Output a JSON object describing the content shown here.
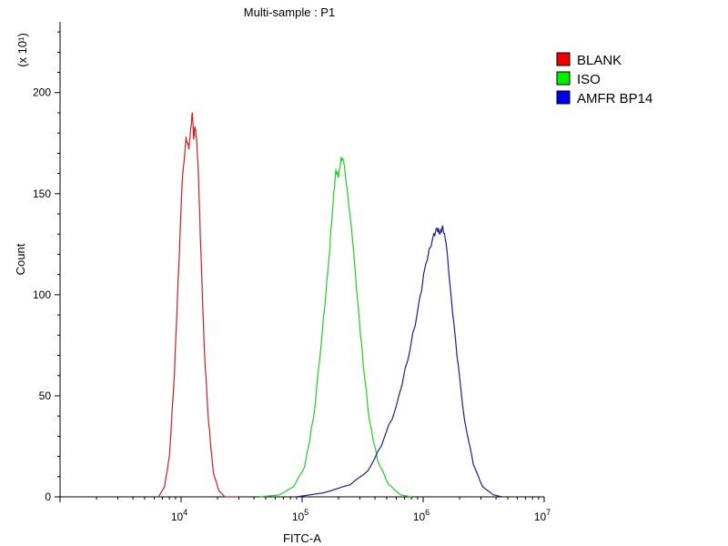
{
  "chart_data": {
    "type": "line",
    "title": "Multi-sample : P1",
    "xlabel": "FITC-A",
    "ylabel": "Count",
    "y_multiplier": "(x 10¹)",
    "x_scale": "log",
    "xlim": [
      1000,
      10000000
    ],
    "ylim": [
      0,
      235
    ],
    "y_ticks": [
      0,
      50,
      100,
      150,
      200
    ],
    "x_ticks": [
      {
        "value": 10000,
        "base": "10",
        "exp": "4"
      },
      {
        "value": 100000,
        "base": "10",
        "exp": "5"
      },
      {
        "value": 1000000,
        "base": "10",
        "exp": "6"
      },
      {
        "value": 10000000,
        "base": "10",
        "exp": "7"
      }
    ],
    "grid": false,
    "legend_position": "top-right",
    "series": [
      {
        "name": "BLANK",
        "color": "#cc1f1f",
        "swatch": "#ee0000",
        "points": [
          [
            6500,
            0
          ],
          [
            7300,
            5
          ],
          [
            8000,
            20
          ],
          [
            8800,
            60
          ],
          [
            9500,
            110
          ],
          [
            10200,
            155
          ],
          [
            11000,
            178
          ],
          [
            11600,
            172
          ],
          [
            12000,
            182
          ],
          [
            12400,
            190
          ],
          [
            12700,
            177
          ],
          [
            13000,
            183
          ],
          [
            13400,
            178
          ],
          [
            13900,
            160
          ],
          [
            14600,
            120
          ],
          [
            15500,
            75
          ],
          [
            16800,
            38
          ],
          [
            18500,
            12
          ],
          [
            20500,
            3
          ],
          [
            23000,
            0
          ],
          [
            30000,
            0
          ]
        ]
      },
      {
        "name": "ISO",
        "color": "#22cc22",
        "swatch": "#00ee00",
        "points": [
          [
            45000,
            0
          ],
          [
            65000,
            1
          ],
          [
            85000,
            5
          ],
          [
            105000,
            15
          ],
          [
            125000,
            40
          ],
          [
            145000,
            78
          ],
          [
            165000,
            115
          ],
          [
            180000,
            145
          ],
          [
            190000,
            162
          ],
          [
            200000,
            158
          ],
          [
            210000,
            168
          ],
          [
            220000,
            166
          ],
          [
            235000,
            153
          ],
          [
            260000,
            128
          ],
          [
            290000,
            95
          ],
          [
            320000,
            65
          ],
          [
            360000,
            38
          ],
          [
            420000,
            18
          ],
          [
            520000,
            6
          ],
          [
            650000,
            1
          ],
          [
            800000,
            0
          ]
        ]
      },
      {
        "name": "AMFR BP14",
        "color": "#1a1f8c",
        "swatch": "#0000ee",
        "points": [
          [
            90000,
            0
          ],
          [
            150000,
            2
          ],
          [
            250000,
            6
          ],
          [
            350000,
            13
          ],
          [
            450000,
            25
          ],
          [
            600000,
            45
          ],
          [
            750000,
            68
          ],
          [
            900000,
            92
          ],
          [
            1050000,
            115
          ],
          [
            1200000,
            128
          ],
          [
            1300000,
            133
          ],
          [
            1380000,
            130
          ],
          [
            1450000,
            134
          ],
          [
            1550000,
            125
          ],
          [
            1700000,
            100
          ],
          [
            1900000,
            70
          ],
          [
            2200000,
            38
          ],
          [
            2600000,
            16
          ],
          [
            3100000,
            5
          ],
          [
            3800000,
            1
          ],
          [
            4500000,
            0
          ]
        ]
      }
    ]
  }
}
